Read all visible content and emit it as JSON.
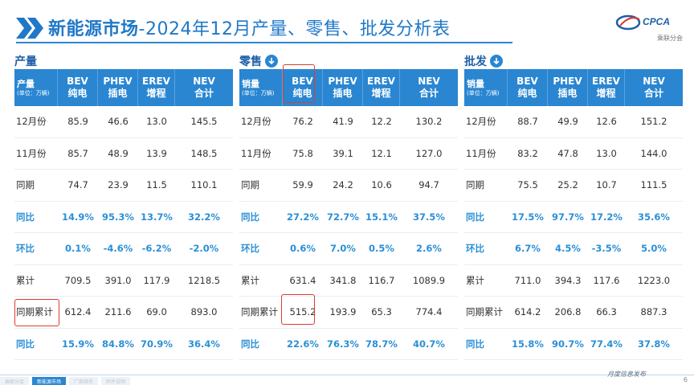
{
  "header": {
    "title_bold": "新能源市场",
    "title_rest": "-2024年12月产量、零售、批发分析表",
    "logo_text": "CPCA",
    "logo_subtext": "乘联分会"
  },
  "sections": [
    {
      "heading": "产量",
      "has_icon": false,
      "row_label_header": "产量",
      "unit": "(单位：万辆)",
      "columns": [
        {
          "top": "BEV",
          "bottom": "纯电"
        },
        {
          "top": "PHEV",
          "bottom": "插电"
        },
        {
          "top": "EREV",
          "bottom": "增程"
        },
        {
          "top": "NEV",
          "bottom": "合计"
        }
      ],
      "rows": [
        {
          "label": "12月份",
          "values": [
            "85.9",
            "46.6",
            "13.0",
            "145.5"
          ],
          "highlight": false
        },
        {
          "label": "11月份",
          "values": [
            "85.7",
            "48.9",
            "13.9",
            "148.5"
          ],
          "highlight": false
        },
        {
          "label": "同期",
          "values": [
            "74.7",
            "23.9",
            "11.5",
            "110.1"
          ],
          "highlight": false
        },
        {
          "label": "同比",
          "values": [
            "14.9%",
            "95.3%",
            "13.7%",
            "32.2%"
          ],
          "highlight": true
        },
        {
          "label": "环比",
          "values": [
            "0.1%",
            "-4.6%",
            "-6.2%",
            "-2.0%"
          ],
          "highlight": true
        },
        {
          "label": "累计",
          "values": [
            "709.5",
            "391.0",
            "117.9",
            "1218.5"
          ],
          "highlight": false
        },
        {
          "label": "同期累计",
          "values": [
            "612.4",
            "211.6",
            "69.0",
            "893.0"
          ],
          "highlight": false
        },
        {
          "label": "同比",
          "values": [
            "15.9%",
            "84.8%",
            "70.9%",
            "36.4%"
          ],
          "highlight": true
        }
      ]
    },
    {
      "heading": "零售",
      "has_icon": true,
      "row_label_header": "销量",
      "unit": "(单位：万辆)",
      "columns": [
        {
          "top": "BEV",
          "bottom": "纯电"
        },
        {
          "top": "PHEV",
          "bottom": "插电"
        },
        {
          "top": "EREV",
          "bottom": "增程"
        },
        {
          "top": "NEV",
          "bottom": "合计"
        }
      ],
      "rows": [
        {
          "label": "12月份",
          "values": [
            "76.2",
            "41.9",
            "12.2",
            "130.2"
          ],
          "highlight": false
        },
        {
          "label": "11月份",
          "values": [
            "75.8",
            "39.1",
            "12.1",
            "127.0"
          ],
          "highlight": false
        },
        {
          "label": "同期",
          "values": [
            "59.9",
            "24.2",
            "10.6",
            "94.7"
          ],
          "highlight": false
        },
        {
          "label": "同比",
          "values": [
            "27.2%",
            "72.7%",
            "15.1%",
            "37.5%"
          ],
          "highlight": true
        },
        {
          "label": "环比",
          "values": [
            "0.6%",
            "7.0%",
            "0.5%",
            "2.6%"
          ],
          "highlight": true
        },
        {
          "label": "累计",
          "values": [
            "631.4",
            "341.8",
            "116.7",
            "1089.9"
          ],
          "highlight": false
        },
        {
          "label": "同期累计",
          "values": [
            "515.2",
            "193.9",
            "65.3",
            "774.4"
          ],
          "highlight": false
        },
        {
          "label": "同比",
          "values": [
            "22.6%",
            "76.3%",
            "78.7%",
            "40.7%"
          ],
          "highlight": true
        }
      ]
    },
    {
      "heading": "批发",
      "has_icon": true,
      "row_label_header": "销量",
      "unit": "(单位：万辆)",
      "columns": [
        {
          "top": "BEV",
          "bottom": "纯电"
        },
        {
          "top": "PHEV",
          "bottom": "插电"
        },
        {
          "top": "EREV",
          "bottom": "增程"
        },
        {
          "top": "NEV",
          "bottom": "合计"
        }
      ],
      "rows": [
        {
          "label": "12月份",
          "values": [
            "88.7",
            "49.9",
            "12.6",
            "151.2"
          ],
          "highlight": false
        },
        {
          "label": "11月份",
          "values": [
            "83.2",
            "47.8",
            "13.0",
            "144.0"
          ],
          "highlight": false
        },
        {
          "label": "同期",
          "values": [
            "75.5",
            "25.2",
            "10.7",
            "111.5"
          ],
          "highlight": false
        },
        {
          "label": "同比",
          "values": [
            "17.5%",
            "97.7%",
            "17.2%",
            "35.6%"
          ],
          "highlight": true
        },
        {
          "label": "环比",
          "values": [
            "6.7%",
            "4.5%",
            "-3.5%",
            "5.0%"
          ],
          "highlight": true
        },
        {
          "label": "累计",
          "values": [
            "711.0",
            "394.3",
            "117.6",
            "1223.0"
          ],
          "highlight": false
        },
        {
          "label": "同期累计",
          "values": [
            "614.2",
            "206.8",
            "66.3",
            "887.3"
          ],
          "highlight": false
        },
        {
          "label": "同比",
          "values": [
            "15.8%",
            "90.7%",
            "77.4%",
            "37.8%"
          ],
          "highlight": true
        }
      ]
    }
  ],
  "footer": {
    "tabs": [
      "乘联分会",
      "新能源市场",
      "厂商排名",
      "附件说明"
    ],
    "active_tab": 1,
    "brand": "月度信息发布",
    "page_number": "6"
  },
  "colors": {
    "accent": "#2a86d1",
    "highlight_text": "#2a8fd6",
    "title": "#1f78c8",
    "annotation": "#e03a2f"
  }
}
